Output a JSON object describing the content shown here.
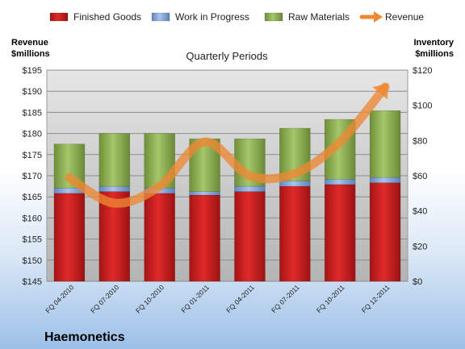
{
  "company": "Haemonetics",
  "chart_data": {
    "type": "bar",
    "stacked": true,
    "title": "Quarterly Periods",
    "left_axis_title": [
      "Revenue",
      "$millions"
    ],
    "right_axis_title": [
      "Inventory",
      "$millions"
    ],
    "categories": [
      "FQ 04-2010",
      "FQ 07-2010",
      "FQ 10-2010",
      "FQ 01-2011",
      "FQ 04-2011",
      "FQ 07-2011",
      "FQ 10-2011",
      "FQ 12-2011"
    ],
    "left_axis": {
      "min": 145,
      "max": 195,
      "step": 5,
      "prefix": "$"
    },
    "right_axis": {
      "min": 0,
      "max": 120,
      "step": 20,
      "prefix": "$"
    },
    "series": [
      {
        "name": "Finished Goods",
        "axis": "right",
        "color": "#cc2222",
        "values": [
          50,
          51,
          50,
          49,
          51,
          54,
          55,
          56
        ]
      },
      {
        "name": "Work in Progress",
        "axis": "right",
        "color": "#7a9fd6",
        "values": [
          3,
          3,
          3,
          2,
          3,
          3,
          3,
          3
        ]
      },
      {
        "name": "Raw Materials",
        "axis": "right",
        "color": "#8db052",
        "values": [
          25,
          30,
          31,
          30,
          27,
          30,
          34,
          38
        ]
      }
    ],
    "line_series": {
      "name": "Revenue",
      "axis": "left",
      "color": "#ee8833",
      "values": [
        169.5,
        163.5,
        167.5,
        178,
        170,
        170.5,
        178,
        191
      ]
    },
    "grid": true,
    "legend_position": "top"
  }
}
